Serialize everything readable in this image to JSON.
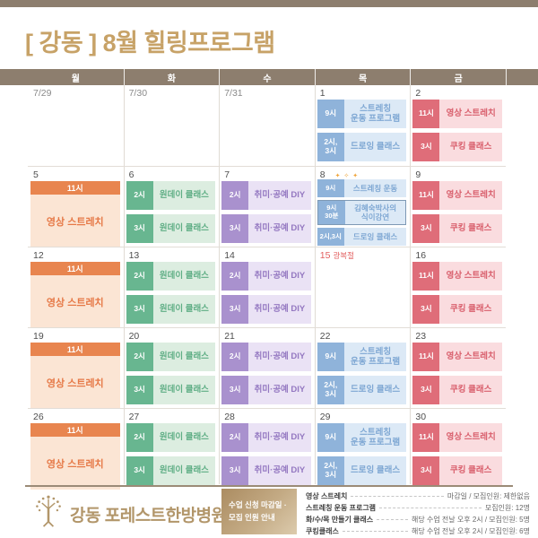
{
  "title": "[ 강동 ] 8월 힐링프로그램",
  "weekday_header": [
    "월",
    "화",
    "수",
    "목",
    "금"
  ],
  "colors": {
    "top_bar": "#8d7e6e",
    "title": "#c7a267",
    "orange_chip": "#e8854f",
    "orange_body": "#fbe5d4",
    "orange_text": "#e67947",
    "green_chip": "#68b690",
    "green_body": "#dcede0",
    "green_text": "#5fae85",
    "purple_chip": "#a991ce",
    "purple_body": "#eae2f5",
    "purple_text": "#9478c1",
    "blue_chip": "#8fb3da",
    "blue_body": "#dce9f6",
    "blue_text": "#7ea7d3",
    "red_chip": "#df6d79",
    "red_body": "#fadcdf",
    "red_text": "#d9606d",
    "holiday": "#e25e5e",
    "footer_gold": "#b2966a"
  },
  "calendar": {
    "weeks": [
      {
        "days": [
          {
            "num": "7/29",
            "muted": true
          },
          {
            "num": "7/30",
            "muted": true
          },
          {
            "num": "7/31",
            "muted": true
          },
          {
            "num": "1",
            "events": [
              {
                "time": "9시",
                "label": "스트레칭\n운동 프로그램",
                "color": "blue"
              },
              {
                "time": "2시,\n3시",
                "label": "드로잉 클래스",
                "color": "blue"
              }
            ]
          },
          {
            "num": "2",
            "events": [
              {
                "time": "11시",
                "label": "영상 스트레치",
                "color": "red"
              },
              {
                "time": "3시",
                "label": "쿠킹 클래스",
                "color": "red"
              }
            ]
          }
        ]
      },
      {
        "days": [
          {
            "num": "5",
            "banner": {
              "time": "11시",
              "label": "영상 스트레치"
            }
          },
          {
            "num": "6",
            "events": [
              {
                "time": "2시",
                "label": "원데이 클래스",
                "color": "green"
              },
              {
                "time": "3시",
                "label": "원데이 클래스",
                "color": "green"
              }
            ]
          },
          {
            "num": "7",
            "events": [
              {
                "time": "2시",
                "label": "취미·공예 DIY",
                "color": "purple"
              },
              {
                "time": "3시",
                "label": "취미·공예 DIY",
                "color": "purple"
              }
            ]
          },
          {
            "num": "8",
            "sparkle": "✦ ✧ ✦",
            "compact": true,
            "events": [
              {
                "time": "9시",
                "label": "스트레칭 운동",
                "color": "blue"
              },
              {
                "time": "9시\n30분",
                "label": "김혜숙박사의\n식이강연",
                "color": "blue",
                "border": true,
                "tall": true
              },
              {
                "time": "2시,3시",
                "label": "드로잉 클래스",
                "color": "blue"
              }
            ]
          },
          {
            "num": "9",
            "events": [
              {
                "time": "11시",
                "label": "영상 스트레치",
                "color": "red"
              },
              {
                "time": "3시",
                "label": "쿠킹 클래스",
                "color": "red"
              }
            ]
          }
        ]
      },
      {
        "days": [
          {
            "num": "12",
            "banner": {
              "time": "11시",
              "label": "영상 스트레치"
            }
          },
          {
            "num": "13",
            "events": [
              {
                "time": "2시",
                "label": "원데이 클래스",
                "color": "green"
              },
              {
                "time": "3시",
                "label": "원데이 클래스",
                "color": "green"
              }
            ]
          },
          {
            "num": "14",
            "events": [
              {
                "time": "2시",
                "label": "취미·공예 DIY",
                "color": "purple"
              },
              {
                "time": "3시",
                "label": "취미·공예 DIY",
                "color": "purple"
              }
            ]
          },
          {
            "num": "15",
            "holiday": "광복절"
          },
          {
            "num": "16",
            "events": [
              {
                "time": "11시",
                "label": "영상 스트레치",
                "color": "red"
              },
              {
                "time": "3시",
                "label": "쿠킹 클래스",
                "color": "red"
              }
            ]
          }
        ]
      },
      {
        "days": [
          {
            "num": "19",
            "banner": {
              "time": "11시",
              "label": "영상 스트레치"
            }
          },
          {
            "num": "20",
            "events": [
              {
                "time": "2시",
                "label": "원데이 클래스",
                "color": "green"
              },
              {
                "time": "3시",
                "label": "원데이 클래스",
                "color": "green"
              }
            ]
          },
          {
            "num": "21",
            "events": [
              {
                "time": "2시",
                "label": "취미·공예 DIY",
                "color": "purple"
              },
              {
                "time": "3시",
                "label": "취미·공예 DIY",
                "color": "purple"
              }
            ]
          },
          {
            "num": "22",
            "events": [
              {
                "time": "9시",
                "label": "스트레칭\n운동 프로그램",
                "color": "blue"
              },
              {
                "time": "2시,\n3시",
                "label": "드로잉 클래스",
                "color": "blue"
              }
            ]
          },
          {
            "num": "23",
            "events": [
              {
                "time": "11시",
                "label": "영상 스트레치",
                "color": "red"
              },
              {
                "time": "3시",
                "label": "쿠킹 클래스",
                "color": "red"
              }
            ]
          }
        ]
      },
      {
        "days": [
          {
            "num": "26",
            "banner": {
              "time": "11시",
              "label": "영상 스트레치"
            }
          },
          {
            "num": "27",
            "events": [
              {
                "time": "2시",
                "label": "원데이 클래스",
                "color": "green"
              },
              {
                "time": "3시",
                "label": "원데이 클래스",
                "color": "green"
              }
            ]
          },
          {
            "num": "28",
            "events": [
              {
                "time": "2시",
                "label": "취미·공예 DIY",
                "color": "purple"
              },
              {
                "time": "3시",
                "label": "취미·공예 DIY",
                "color": "purple"
              }
            ]
          },
          {
            "num": "29",
            "events": [
              {
                "time": "9시",
                "label": "스트레칭\n운동 프로그램",
                "color": "blue"
              },
              {
                "time": "2시,\n3시",
                "label": "드로잉 클래스",
                "color": "blue"
              }
            ]
          },
          {
            "num": "30",
            "events": [
              {
                "time": "11시",
                "label": "영상 스트레치",
                "color": "red"
              },
              {
                "time": "3시",
                "label": "쿠킹 클래스",
                "color": "red"
              }
            ]
          }
        ]
      }
    ]
  },
  "footer": {
    "hospital_name": "강동 포레스트한방병원",
    "info_box": "수업 신청 마감일 ·\n모집 인원 안내",
    "legend": [
      {
        "label": "영상 스트레치",
        "value": "마감일 / 모집인원: 제한없음"
      },
      {
        "label": "스트레칭 운동 프로그램",
        "value": "모집인원: 12명"
      },
      {
        "label": "화/수/목 만들기 클래스",
        "value": "해당 수업 전날 오후 2시 / 모집인원: 5명"
      },
      {
        "label": "쿠킹클래스",
        "value": "해당 수업 전날 오후 2시 / 모집인원: 6명"
      }
    ]
  }
}
